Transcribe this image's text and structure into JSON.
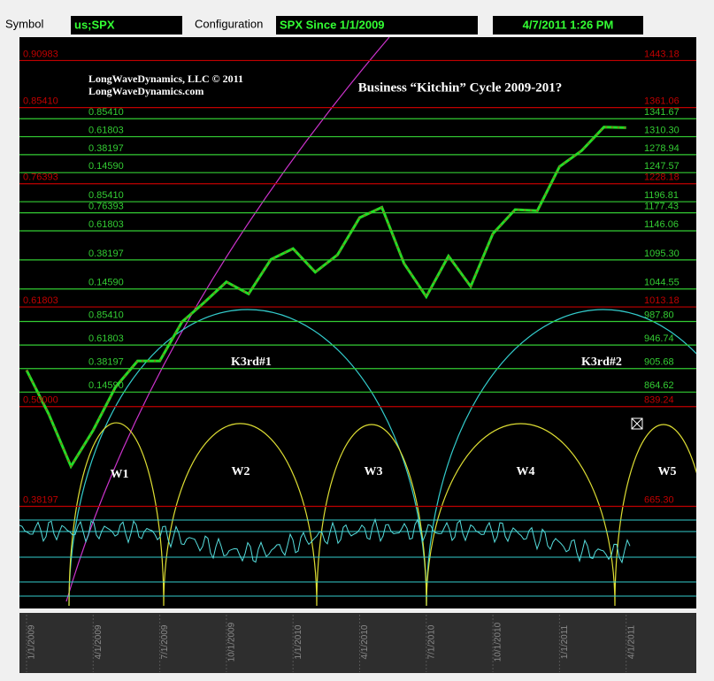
{
  "toolbar": {
    "symbol_label": "Symbol",
    "symbol": "us;SPX",
    "configuration_label": "Configuration",
    "configuration": "SPX Since 1/1/2009",
    "timestamp": "4/7/2011 1:26 PM"
  },
  "chart_data": {
    "type": "line",
    "title": "Business “Kitchin” Cycle 2009-201?",
    "annotations": [
      "LongWaveDynamics, LLC © 2011",
      "LongWaveDynamics.com"
    ],
    "cycle_labels": [
      "K3rd#1",
      "K3rd#2",
      "W1",
      "W2",
      "W3",
      "W4",
      "W5"
    ],
    "categories": [
      "1/1/2009",
      null,
      null,
      "4/1/2009",
      null,
      null,
      "7/1/2009",
      null,
      null,
      "10/1/2009",
      null,
      null,
      "1/1/2010",
      null,
      null,
      "4/1/2010",
      null,
      null,
      "7/1/2010",
      null,
      null,
      "10/1/2010",
      null,
      null,
      "1/1/2011",
      null,
      null,
      "4/1/2011"
    ],
    "values": [
      903,
      826,
      735,
      798,
      873,
      919,
      919,
      987,
      1021,
      1057,
      1036,
      1096,
      1115,
      1074,
      1104,
      1169,
      1187,
      1089,
      1031,
      1102,
      1049,
      1141,
      1183,
      1181,
      1258,
      1286,
      1327,
      1326
    ],
    "color": "#22dd22",
    "ylim": [
      487,
      1484
    ],
    "yticks": [
      1443.18,
      {
        "value": 1361.06,
        "label": "1361.06"
      },
      1341.67,
      {
        "value": 1310.3,
        "label": "1310.30"
      },
      1278.94,
      1247.57,
      1228.18,
      1196.81,
      1177.43,
      1146.06,
      {
        "value": 1095.3,
        "label": "1095.30"
      },
      1044.55,
      1013.18,
      {
        "value": 987.8,
        "label": "987.80"
      },
      946.74,
      905.68,
      864.62,
      839.24,
      {
        "value": 665.3,
        "label": "665.30"
      }
    ],
    "tick_ratios": [
      "0.90983",
      "0.85410",
      "0.85410",
      "0.61803",
      "0.38197",
      "0.14590",
      "0.76393",
      "0.85410",
      "0.76393",
      "0.61803",
      "0.38197",
      "0.14590",
      "0.61803",
      "0.85410",
      "0.61803",
      "0.38197",
      "0.14590",
      "0.50000",
      "0.38197"
    ],
    "tick_colors": [
      "#c00000",
      "#c00000",
      "#33cc33",
      "#33cc33",
      "#33cc33",
      "#33cc33",
      "#c00000",
      "#33cc33",
      "#33cc33",
      "#33cc33",
      "#33cc33",
      "#33cc33",
      "#c00000",
      "#33cc33",
      "#33cc33",
      "#33cc33",
      "#33cc33",
      "#c00000",
      "#c00000"
    ]
  }
}
